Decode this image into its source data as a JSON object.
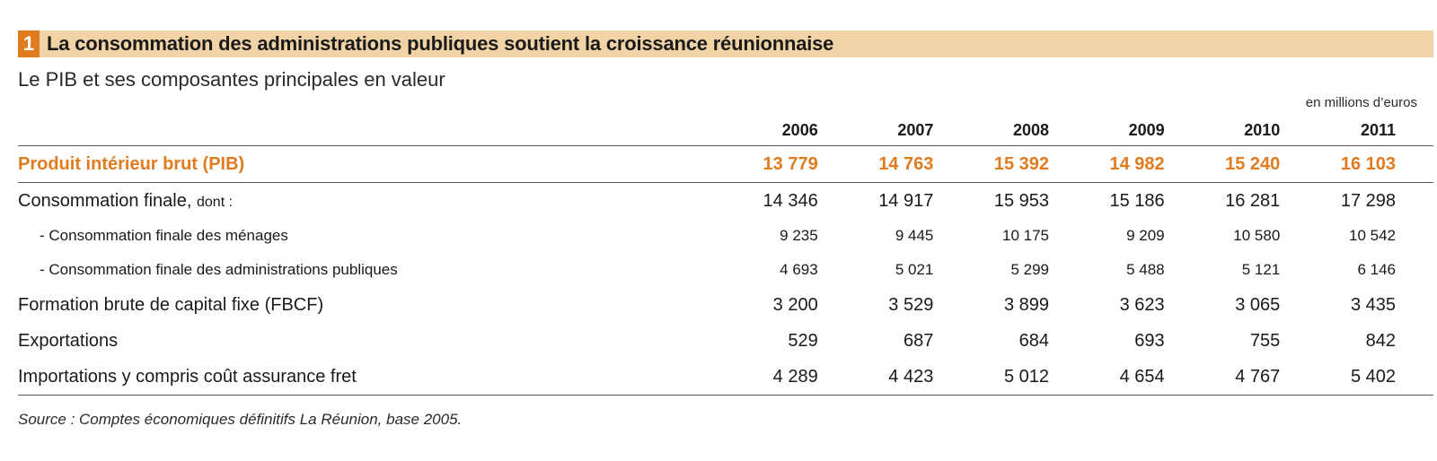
{
  "title": {
    "number": "1",
    "text": "La consommation des administrations publiques soutient la croissance réunionnaise"
  },
  "subtitle": "Le PIB et ses composantes principales en valeur",
  "unit": "en millions d’euros",
  "years": [
    "2006",
    "2007",
    "2008",
    "2009",
    "2010",
    "2011"
  ],
  "pib": {
    "label": "Produit intérieur brut (PIB)",
    "values": [
      "13 779",
      "14 763",
      "15 392",
      "14 982",
      "15 240",
      "16 103"
    ]
  },
  "consommation": {
    "label": "Consommation finale,",
    "suffix": "dont :",
    "values": [
      "14 346",
      "14 917",
      "15 953",
      "15 186",
      "16 281",
      "17 298"
    ]
  },
  "menages": {
    "label": "- Consommation finale des ménages",
    "values": [
      "9 235",
      "9 445",
      "10 175",
      "9 209",
      "10 580",
      "10 542"
    ]
  },
  "apu": {
    "label": "- Consommation finale des administrations publiques",
    "values": [
      "4 693",
      "5 021",
      "5 299",
      "5 488",
      "5 121",
      "6 146"
    ]
  },
  "fbcf": {
    "label": "Formation brute de capital fixe (FBCF)",
    "values": [
      "3 200",
      "3 529",
      "3 899",
      "3 623",
      "3 065",
      "3 435"
    ]
  },
  "exportations": {
    "label": "Exportations",
    "values": [
      "529",
      "687",
      "684",
      "693",
      "755",
      "842"
    ]
  },
  "importations": {
    "label": "Importations y compris coût assurance fret",
    "values": [
      "4 289",
      "4 423",
      "5 012",
      "4 654",
      "4 767",
      "5 402"
    ]
  },
  "source": "Source : Comptes économiques définitifs La Réunion, base 2005.",
  "colors": {
    "accent": "#e07b1f",
    "title_band": "#f1d3a6"
  }
}
